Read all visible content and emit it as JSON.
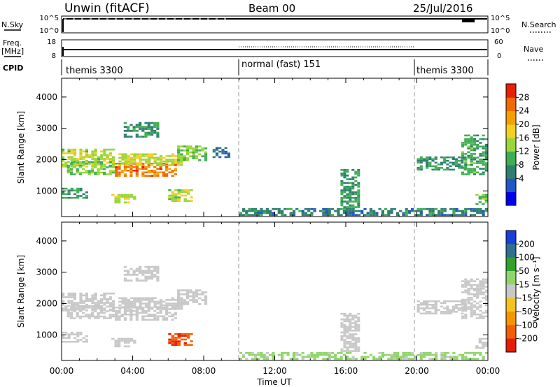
{
  "header": {
    "site": "Unwin (fitACF)",
    "beam": "Beam 00",
    "date": "25/Jul/2016"
  },
  "panels": {
    "nsky": {
      "left_label": "N.Sky",
      "left_ticks": [
        "10^5",
        "10^0"
      ],
      "right_label": "N.Search",
      "right_ticks": [
        "10^5",
        "10^0"
      ]
    },
    "freq": {
      "left_label_1": "Freq.",
      "left_label_2": "[MHz]",
      "left_ticks": [
        "18",
        "8"
      ],
      "right_label": "Nave",
      "right_ticks": [
        "60",
        "0"
      ]
    },
    "cpid": {
      "label": "CPID",
      "segments": [
        {
          "name": "themis 3300",
          "start_hour": 0,
          "end_hour": 10
        },
        {
          "name": "normal (fast) 151",
          "start_hour": 10,
          "end_hour": 20
        },
        {
          "name": "themis 3300",
          "start_hour": 20,
          "end_hour": 24
        }
      ]
    }
  },
  "axes": {
    "ylabel": "Slant Range [km]",
    "yticks": [
      "4000",
      "3000",
      "2000",
      "1000"
    ],
    "xlabel": "Time UT",
    "xticks": [
      "00:00",
      "04:00",
      "08:00",
      "12:00",
      "16:00",
      "20:00",
      "00:00"
    ]
  },
  "colorbars": {
    "power": {
      "label": "Power [dB]",
      "ticks": [
        "28",
        "24",
        "20",
        "16",
        "12",
        "8",
        "4"
      ],
      "colors": [
        "#0000f0",
        "#2255c8",
        "#2f7f6f",
        "#3fae52",
        "#9ad53a",
        "#f2d020",
        "#f5a000",
        "#f06a00",
        "#e82000"
      ]
    },
    "velocity": {
      "label": "Velocity [m s⁻¹]",
      "ticks": [
        "200",
        "100",
        "50",
        "15",
        "-15",
        "-50",
        "-100",
        "-200"
      ],
      "colors": [
        "#1a3ed8",
        "#2f6f8f",
        "#33a02c",
        "#8fd66a",
        "#c8c8c8",
        "#f4c41a",
        "#f39600",
        "#f06000",
        "#e81c00"
      ]
    }
  },
  "chart_data": [
    {
      "type": "heatmap",
      "title": "Power",
      "xlabel": "Time UT",
      "ylabel": "Slant Range [km]",
      "xlim": [
        0,
        24
      ],
      "ylim": [
        180,
        4600
      ],
      "colorbar_label": "Power [dB]",
      "colorbar_range": [
        0,
        30
      ],
      "regions": [
        {
          "t0": 0.0,
          "t1": 3.0,
          "r0": 1750,
          "r1": 2350,
          "value": 14
        },
        {
          "t0": 0.3,
          "t1": 3.0,
          "r0": 1500,
          "r1": 1950,
          "value": 12
        },
        {
          "t0": 3.0,
          "t1": 6.5,
          "r0": 1450,
          "r1": 1900,
          "value": 23
        },
        {
          "t0": 3.2,
          "t1": 7.0,
          "r0": 1800,
          "r1": 2200,
          "value": 15
        },
        {
          "t0": 6.5,
          "t1": 8.2,
          "r0": 1950,
          "r1": 2450,
          "value": 12
        },
        {
          "t0": 0.0,
          "t1": 1.5,
          "r0": 750,
          "r1": 1100,
          "value": 9
        },
        {
          "t0": 2.8,
          "t1": 4.2,
          "r0": 600,
          "r1": 900,
          "value": 14
        },
        {
          "t0": 6.0,
          "t1": 7.4,
          "r0": 650,
          "r1": 1050,
          "value": 14
        },
        {
          "t0": 3.5,
          "t1": 5.5,
          "r0": 2700,
          "r1": 3200,
          "value": 8
        },
        {
          "t0": 8.5,
          "t1": 9.5,
          "r0": 2050,
          "r1": 2400,
          "value": 6
        },
        {
          "t0": 10.0,
          "t1": 24.0,
          "r0": 200,
          "r1": 450,
          "value": 7
        },
        {
          "t0": 15.7,
          "t1": 16.8,
          "r0": 450,
          "r1": 1700,
          "value": 9
        },
        {
          "t0": 20.0,
          "t1": 22.8,
          "r0": 1650,
          "r1": 2100,
          "value": 8
        },
        {
          "t0": 22.5,
          "t1": 24.0,
          "r0": 1500,
          "r1": 2800,
          "value": 10
        },
        {
          "t0": 23.3,
          "t1": 24.0,
          "r0": 550,
          "r1": 900,
          "value": 11
        }
      ]
    },
    {
      "type": "heatmap",
      "title": "Velocity",
      "xlabel": "Time UT",
      "ylabel": "Slant Range [km]",
      "xlim": [
        0,
        24
      ],
      "ylim": [
        180,
        4600
      ],
      "colorbar_label": "Velocity [m s⁻¹]",
      "colorbar_range": [
        -250,
        250
      ],
      "regions": [
        {
          "t0": 0.0,
          "t1": 3.0,
          "r0": 1750,
          "r1": 2350,
          "value": 0
        },
        {
          "t0": 0.3,
          "t1": 3.0,
          "r0": 1500,
          "r1": 1950,
          "value": 0
        },
        {
          "t0": 3.0,
          "t1": 6.5,
          "r0": 1450,
          "r1": 1900,
          "value": -5
        },
        {
          "t0": 3.2,
          "t1": 7.0,
          "r0": 1800,
          "r1": 2200,
          "value": 0
        },
        {
          "t0": 6.5,
          "t1": 8.2,
          "r0": 1950,
          "r1": 2450,
          "value": 5
        },
        {
          "t0": 0.0,
          "t1": 1.5,
          "r0": 750,
          "r1": 1100,
          "value": -5
        },
        {
          "t0": 2.8,
          "t1": 4.2,
          "r0": 600,
          "r1": 900,
          "value": 0
        },
        {
          "t0": 6.0,
          "t1": 7.4,
          "r0": 650,
          "r1": 1050,
          "value": -200
        },
        {
          "t0": 3.5,
          "t1": 5.5,
          "r0": 2700,
          "r1": 3200,
          "value": 0
        },
        {
          "t0": 10.0,
          "t1": 24.0,
          "r0": 200,
          "r1": 450,
          "value": 30
        },
        {
          "t0": 15.7,
          "t1": 16.8,
          "r0": 450,
          "r1": 1700,
          "value": 0
        },
        {
          "t0": 20.0,
          "t1": 22.8,
          "r0": 1650,
          "r1": 2100,
          "value": -5
        },
        {
          "t0": 22.5,
          "t1": 24.0,
          "r0": 1500,
          "r1": 2800,
          "value": 0
        },
        {
          "t0": 23.3,
          "t1": 24.0,
          "r0": 550,
          "r1": 900,
          "value": 0
        }
      ]
    }
  ]
}
